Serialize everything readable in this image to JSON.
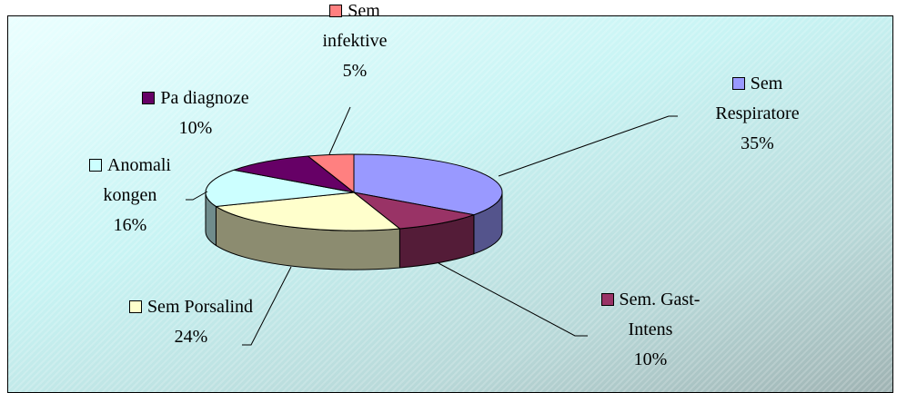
{
  "chart_data": {
    "type": "pie",
    "categories": [
      "Sem Respiratore",
      "Sem. Gast-Intens",
      "Sem Porsalind",
      "Anomali kongen",
      "Pa diagnoze",
      "Sem infektive"
    ],
    "values": [
      35,
      10,
      24,
      16,
      10,
      5
    ],
    "value_labels": [
      "35%",
      "10%",
      "24%",
      "16%",
      "10%",
      "5%"
    ],
    "colors": [
      "#9999ff",
      "#993366",
      "#ffffcc",
      "#ccffff",
      "#660066",
      "#ff8080"
    ]
  }
}
